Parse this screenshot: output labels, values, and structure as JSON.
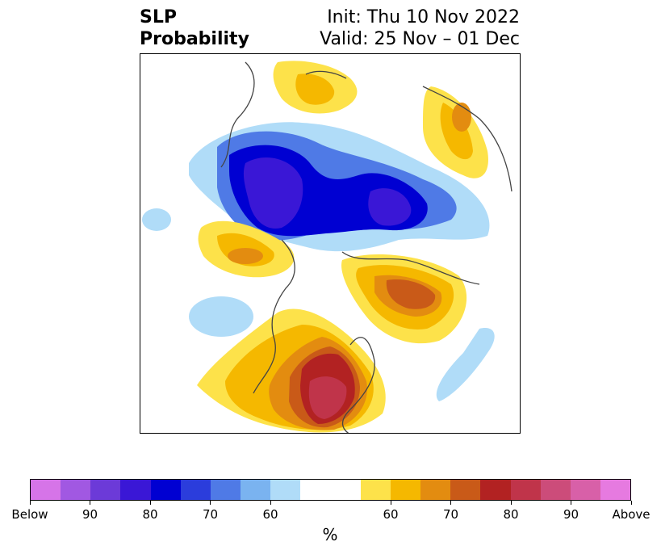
{
  "title": {
    "left_line1": "SLP",
    "left_line2": "Probability",
    "right_line1": "Init: Thu 10 Nov 2022",
    "right_line2": "Valid: 25 Nov – 01 Dec"
  },
  "colorbar": {
    "unit": "%",
    "colors": [
      "#d674e8",
      "#a158e2",
      "#6c3ad8",
      "#3a17d6",
      "#0000d2",
      "#2b3ddc",
      "#4f7ae6",
      "#7ab3f0",
      "#b0dcf8",
      "#ffffff",
      "#ffffff",
      "#fde24a",
      "#f5b800",
      "#e38c10",
      "#c95a18",
      "#b22222",
      "#c0344a",
      "#cc4c7a",
      "#d860a8",
      "#e67ae0"
    ],
    "tick_labels": [
      "Below",
      "90",
      "80",
      "70",
      "60",
      "60",
      "70",
      "80",
      "90",
      "Above"
    ]
  },
  "legend_meaning": {
    "below_colors": [
      "#0000d2",
      "#2b3ddc",
      "#4f7ae6",
      "#7ab3f0",
      "#b0dcf8"
    ],
    "above_colors": [
      "#fde24a",
      "#f5b800",
      "#e38c10",
      "#c95a18",
      "#b22222",
      "#c0344a"
    ]
  }
}
